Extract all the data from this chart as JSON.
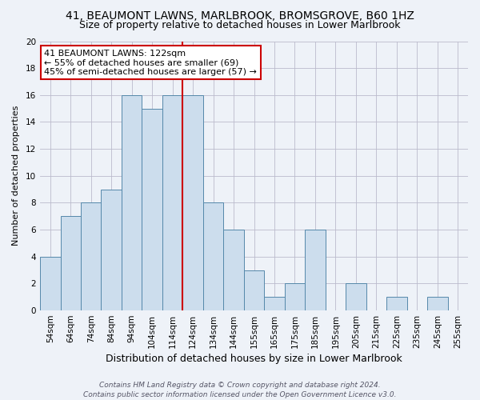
{
  "title": "41, BEAUMONT LAWNS, MARLBROOK, BROMSGROVE, B60 1HZ",
  "subtitle": "Size of property relative to detached houses in Lower Marlbrook",
  "xlabel": "Distribution of detached houses by size in Lower Marlbrook",
  "ylabel": "Number of detached properties",
  "bin_labels": [
    "54sqm",
    "64sqm",
    "74sqm",
    "84sqm",
    "94sqm",
    "104sqm",
    "114sqm",
    "124sqm",
    "134sqm",
    "144sqm",
    "155sqm",
    "165sqm",
    "175sqm",
    "185sqm",
    "195sqm",
    "205sqm",
    "215sqm",
    "225sqm",
    "235sqm",
    "245sqm",
    "255sqm"
  ],
  "bar_values": [
    4,
    7,
    8,
    9,
    16,
    15,
    16,
    16,
    8,
    6,
    3,
    1,
    2,
    6,
    0,
    2,
    0,
    1,
    0,
    1,
    0
  ],
  "bar_color": "#ccdded",
  "bar_edge_color": "#5588aa",
  "background_color": "#eef2f8",
  "grid_color": "#bbbbcc",
  "property_line_color": "#cc0000",
  "property_line_bin": 7,
  "annotation_text": "41 BEAUMONT LAWNS: 122sqm\n← 55% of detached houses are smaller (69)\n45% of semi-detached houses are larger (57) →",
  "annotation_box_facecolor": "#ffffff",
  "annotation_box_edgecolor": "#cc0000",
  "ylim": [
    0,
    20
  ],
  "yticks": [
    0,
    2,
    4,
    6,
    8,
    10,
    12,
    14,
    16,
    18,
    20
  ],
  "title_fontsize": 10,
  "subtitle_fontsize": 9,
  "xlabel_fontsize": 9,
  "ylabel_fontsize": 8,
  "tick_fontsize": 7.5,
  "annotation_fontsize": 8,
  "footer_fontsize": 6.5,
  "footer_line1": "Contains HM Land Registry data © Crown copyright and database right 2024.",
  "footer_line2": "Contains public sector information licensed under the Open Government Licence v3.0."
}
